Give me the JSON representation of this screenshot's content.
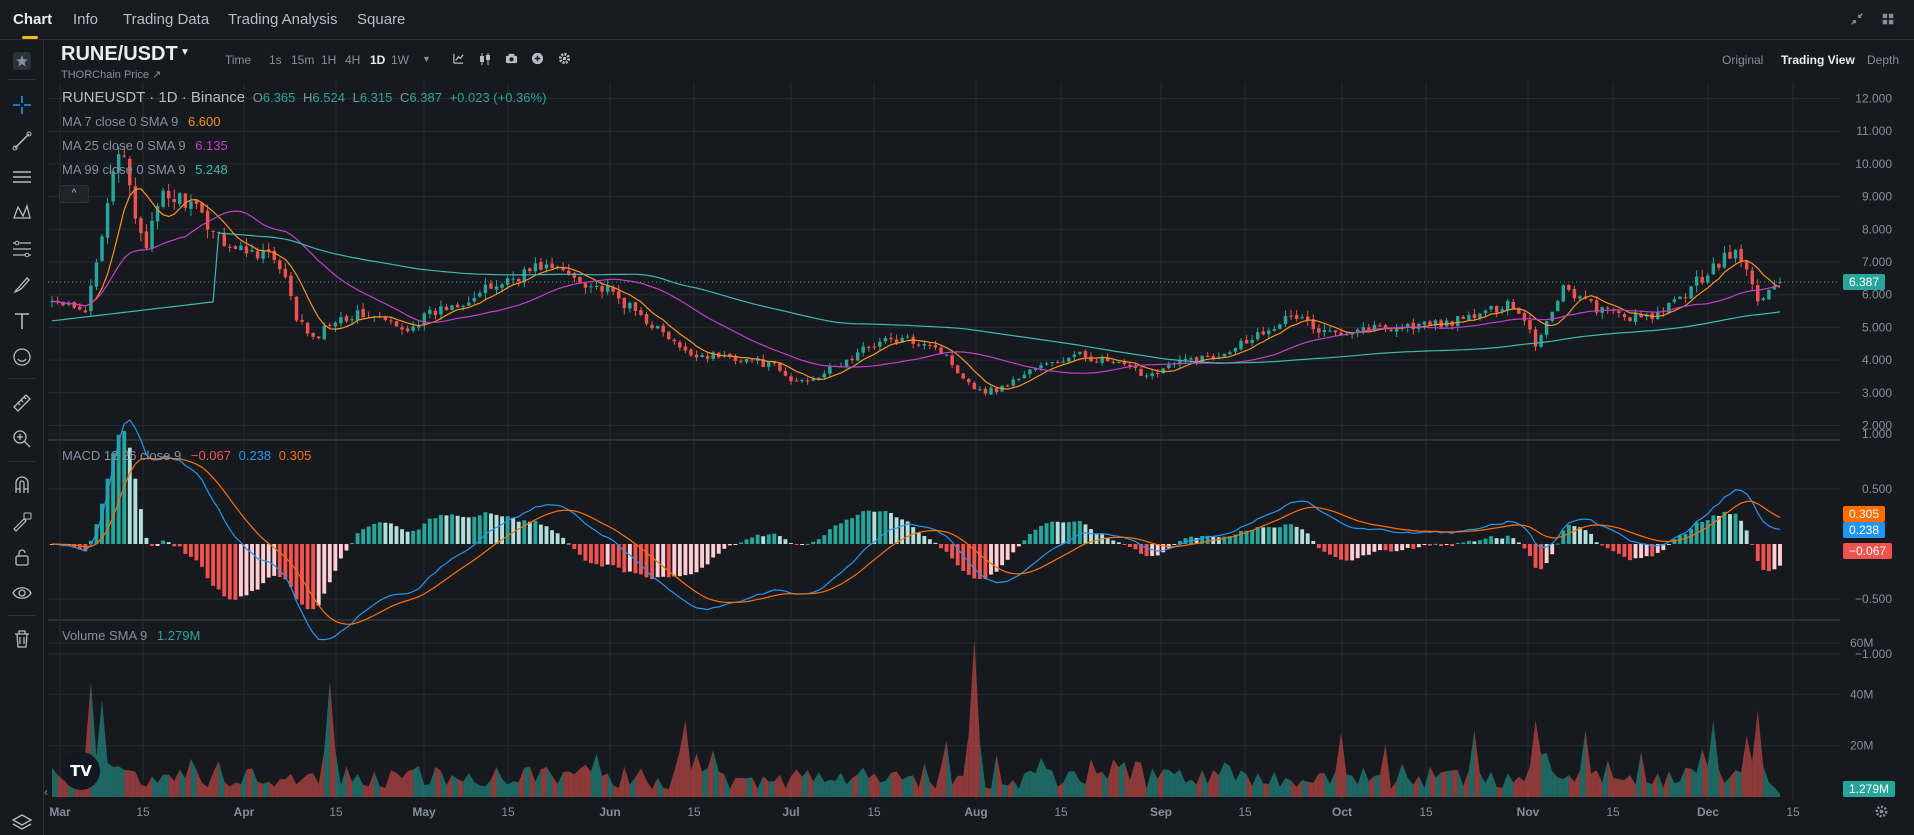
{
  "top_nav": {
    "tabs": [
      "Chart",
      "Info",
      "Trading Data",
      "Trading Analysis",
      "Square"
    ],
    "active_tab": "Chart",
    "icons": [
      "collapse-icon",
      "grid-layout-icon"
    ]
  },
  "symbol": {
    "pair": "RUNE/USDT",
    "subtitle": "THORChain Price ↗"
  },
  "toolbar": {
    "intervals": [
      "Time",
      "1s",
      "15m",
      "1H",
      "4H",
      "1D",
      "1W"
    ],
    "active_interval": "1D",
    "icons": [
      "chevron-down-icon",
      "indicator-icon",
      "candle-type-icon",
      "camera-icon",
      "plus-circle-icon",
      "settings-icon"
    ],
    "views": [
      "Original",
      "Trading View",
      "Depth"
    ],
    "active_view": "Trading View"
  },
  "left_tools": [
    "crosshair-icon",
    "trendline-icon",
    "horizontal-lines-icon",
    "pattern-icon",
    "fib-icon",
    "brush-icon",
    "text-icon",
    "emoji-icon",
    "ruler-icon",
    "zoom-in-icon",
    "magnet-icon",
    "lock-draw-icon",
    "lock-icon",
    "eye-icon",
    "trash-icon",
    "layers-icon"
  ],
  "legend": {
    "ohlc_title": "RUNEUSDT · 1D · Binance",
    "open_label": "O",
    "open": "6.365",
    "high_label": "H",
    "high": "6.524",
    "low_label": "L",
    "low": "6.315",
    "close_label": "C",
    "close": "6.387",
    "change": "+0.023 (+0.36%)",
    "ma7_label": "MA 7 close 0 SMA 9",
    "ma7_value": "6.600",
    "ma25_label": "MA 25 close 0 SMA 9",
    "ma25_value": "6.135",
    "ma99_label": "MA 99 close 0 SMA 9",
    "ma99_value": "5.248",
    "macd_label": "MACD 12 26 close 9",
    "macd_hist": "−0.067",
    "macd_line": "0.238",
    "macd_signal": "0.305",
    "volume_label": "Volume SMA 9",
    "volume_value": "1.279M",
    "collapse_symbol": "^"
  },
  "colors": {
    "up": "#26a69a",
    "down": "#ef5350",
    "ma7": "#f7931a",
    "ma25": "#c03ec9",
    "ma99": "#3eb8b0",
    "macd": "#2196f3",
    "signal": "#ff6d00",
    "hist_up": "#26a69a",
    "hist_up_light": "#b2dfdb",
    "hist_down": "#ef5350",
    "hist_down_light": "#ffcdd2",
    "text_muted": "#848e9c",
    "background": "#161a1e",
    "grid": "#252930",
    "accent": "#f0b90b"
  },
  "price_axis": {
    "ticks": [
      "12.000",
      "11.000",
      "10.000",
      "9.000",
      "8.000",
      "7.000",
      "6.000",
      "5.000",
      "4.000",
      "3.000",
      "2.000"
    ],
    "last_price": "6.387"
  },
  "macd_axis": {
    "ticks": [
      "1.000",
      "0.500",
      "−0.500",
      "−1.000"
    ],
    "signal_tag": "0.305",
    "macd_tag": "0.238",
    "hist_tag": "−0.067"
  },
  "volume_axis": {
    "ticks": [
      "60M",
      "40M",
      "20M"
    ],
    "current_tag": "1.279M"
  },
  "time_axis": {
    "labels": [
      "Mar",
      "15",
      "Apr",
      "15",
      "May",
      "15",
      "Jun",
      "15",
      "Jul",
      "15",
      "Aug",
      "15",
      "Sep",
      "15",
      "Oct",
      "15",
      "Nov",
      "15",
      "Dec",
      "15"
    ]
  },
  "tv_logo": "TV",
  "chart_data": {
    "type": "candlestick",
    "price_range": [
      2,
      12
    ],
    "macd_range": [
      -1,
      1
    ],
    "volume_range_m": [
      0,
      65
    ],
    "anchors": [
      [
        0,
        5.8
      ],
      [
        6,
        5.4
      ],
      [
        9,
        8.0
      ],
      [
        11,
        9.9
      ],
      [
        13,
        10.1
      ],
      [
        15,
        8.4
      ],
      [
        17,
        7.6
      ],
      [
        20,
        9.0
      ],
      [
        24,
        8.9
      ],
      [
        29,
        8.0
      ],
      [
        33,
        7.4
      ],
      [
        39,
        7.3
      ],
      [
        42,
        6.4
      ],
      [
        44,
        5.3
      ],
      [
        47,
        4.6
      ],
      [
        51,
        5.3
      ],
      [
        56,
        5.4
      ],
      [
        60,
        5.2
      ],
      [
        63,
        4.9
      ],
      [
        67,
        5.3
      ],
      [
        72,
        5.7
      ],
      [
        76,
        5.95
      ],
      [
        80,
        6.3
      ],
      [
        84,
        6.6
      ],
      [
        88,
        6.9
      ],
      [
        92,
        6.7
      ],
      [
        96,
        6.4
      ],
      [
        100,
        6.1
      ],
      [
        104,
        5.6
      ],
      [
        108,
        5.1
      ],
      [
        111,
        4.65
      ],
      [
        114,
        4.2
      ],
      [
        118,
        4.15
      ],
      [
        122,
        4.1
      ],
      [
        126,
        4.0
      ],
      [
        130,
        3.8
      ],
      [
        133,
        3.35
      ],
      [
        136,
        3.4
      ],
      [
        140,
        3.7
      ],
      [
        144,
        4.05
      ],
      [
        147,
        4.45
      ],
      [
        150,
        4.6
      ],
      [
        154,
        4.6
      ],
      [
        158,
        4.55
      ],
      [
        161,
        4.1
      ],
      [
        164,
        3.5
      ],
      [
        167,
        3.05
      ],
      [
        170,
        3.1
      ],
      [
        173,
        3.35
      ],
      [
        176,
        3.7
      ],
      [
        180,
        3.9
      ],
      [
        185,
        4.15
      ],
      [
        189,
        4.0
      ],
      [
        193,
        3.8
      ],
      [
        197,
        3.55
      ],
      [
        200,
        3.75
      ],
      [
        204,
        4.0
      ],
      [
        209,
        4.1
      ],
      [
        213,
        4.45
      ],
      [
        217,
        4.8
      ],
      [
        221,
        5.2
      ],
      [
        225,
        5.35
      ],
      [
        228,
        4.8
      ],
      [
        232,
        4.9
      ],
      [
        236,
        5.0
      ],
      [
        240,
        5.0
      ],
      [
        245,
        5.05
      ],
      [
        249,
        5.1
      ],
      [
        253,
        5.2
      ],
      [
        256,
        5.35
      ],
      [
        259,
        5.5
      ],
      [
        262,
        5.8
      ],
      [
        265,
        5.3
      ],
      [
        267,
        4.5
      ],
      [
        270,
        5.5
      ],
      [
        272,
        6.3
      ],
      [
        275,
        5.9
      ],
      [
        279,
        5.5
      ],
      [
        283,
        5.35
      ],
      [
        287,
        5.25
      ],
      [
        291,
        5.6
      ],
      [
        295,
        6.2
      ],
      [
        299,
        6.9
      ],
      [
        303,
        7.3
      ],
      [
        305,
        6.7
      ],
      [
        307,
        5.9
      ],
      [
        309,
        6.1
      ],
      [
        311,
        6.387
      ]
    ],
    "ohlc_last": {
      "open": 6.365,
      "high": 6.524,
      "low": 6.315,
      "close": 6.387
    },
    "ma_last": {
      "ma7": 6.6,
      "ma25": 6.135,
      "ma99": 5.248
    },
    "macd_last": {
      "macd": 0.238,
      "signal": 0.305,
      "histogram": -0.067
    },
    "volume_sma9_last_m": 1.279,
    "volume_spikes": [
      [
        7,
        45
      ],
      [
        9,
        38
      ],
      [
        50,
        45
      ],
      [
        114,
        30
      ],
      [
        166,
        62
      ],
      [
        232,
        25
      ],
      [
        256,
        26
      ],
      [
        267,
        30
      ],
      [
        276,
        26
      ],
      [
        299,
        30
      ],
      [
        307,
        34
      ],
      [
        305,
        24
      ]
    ]
  }
}
